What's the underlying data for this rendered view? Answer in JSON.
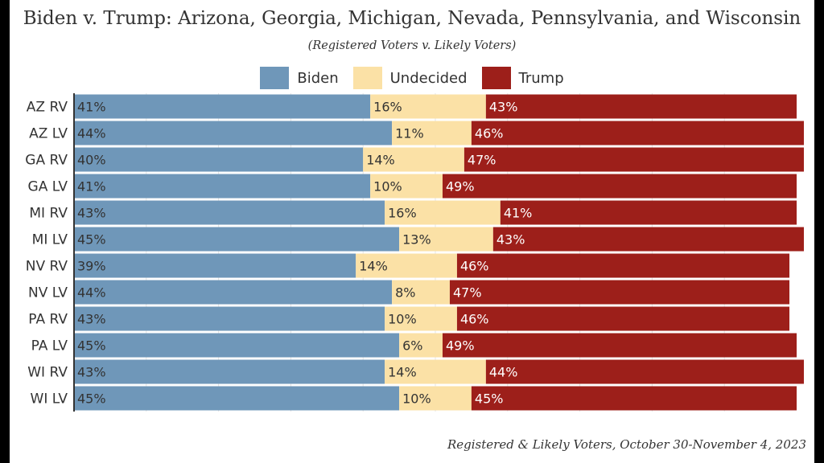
{
  "chart_data": {
    "type": "bar",
    "orientation": "horizontal",
    "stacked": true,
    "title": "Biden v. Trump: Arizona, Georgia, Michigan, Nevada, Pennsylvania, and Wisconsin",
    "subtitle": "(Registered Voters v. Likely Voters)",
    "footer": "Registered & Likely Voters, October 30-November 4, 2023",
    "legend_position": "top",
    "categories": [
      "AZ RV",
      "AZ LV",
      "GA RV",
      "GA LV",
      "MI RV",
      "MI LV",
      "NV RV",
      "NV LV",
      "PA RV",
      "PA LV",
      "WI RV",
      "WI LV"
    ],
    "series": [
      {
        "name": "Biden",
        "color": "#6f97b9",
        "values": [
          41,
          44,
          40,
          41,
          43,
          45,
          39,
          44,
          43,
          45,
          43,
          45
        ]
      },
      {
        "name": "Undecided",
        "color": "#fbe1a6",
        "values": [
          16,
          11,
          14,
          10,
          16,
          13,
          14,
          8,
          10,
          6,
          14,
          10
        ]
      },
      {
        "name": "Trump",
        "color": "#9d1f1a",
        "values": [
          43,
          46,
          47,
          49,
          41,
          43,
          46,
          47,
          46,
          49,
          44,
          45
        ]
      }
    ],
    "value_suffix": "%",
    "xlim": [
      0,
      100
    ],
    "grid": true
  }
}
